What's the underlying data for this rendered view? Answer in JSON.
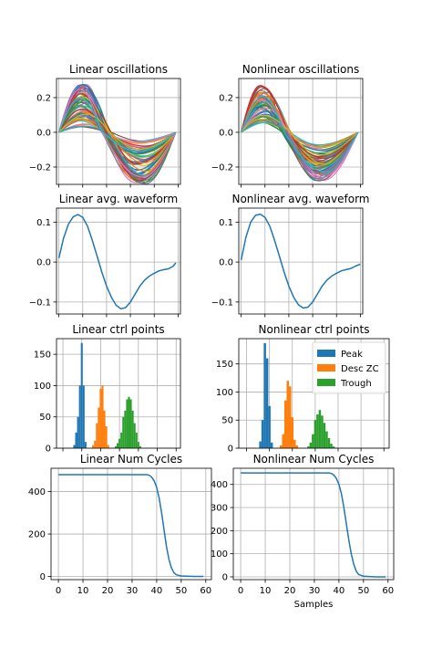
{
  "colors": {
    "line": "#1f77b4",
    "peak": "#1f77b4",
    "desc_zc": "#ff7f0e",
    "trough": "#2ca02c",
    "grid": "#b0b0b0",
    "spines": "#000000",
    "cycle": [
      "#1f77b4",
      "#ff7f0e",
      "#2ca02c",
      "#d62728",
      "#9467bd",
      "#8c564b",
      "#e377c2",
      "#7f7f7f",
      "#bcbd22",
      "#17becf"
    ]
  },
  "chart_data": [
    {
      "id": "lin_osc",
      "type": "line",
      "title": "Linear oscillations",
      "xlabel": "",
      "ylabel": "",
      "xlim": [
        -1,
        51
      ],
      "ylim": [
        -0.3,
        0.31
      ],
      "xticks": [
        0,
        10,
        20,
        30,
        40,
        50
      ],
      "yticks": [
        -0.2,
        0.0,
        0.2
      ],
      "ytick_labels": [
        "−0.2",
        "0.0",
        "0.2"
      ],
      "show_xtick_labels": false,
      "grid": true,
      "waveform": {
        "n_traces": 60,
        "length": 50,
        "peak_idx": 10,
        "zc_idx": 20,
        "trough_idx": 34,
        "end_idx": 49,
        "peak_amp": [
          0.03,
          0.28
        ],
        "trough_amp": [
          -0.3,
          -0.05
        ],
        "end_val": 0.0
      }
    },
    {
      "id": "nonlin_osc",
      "type": "line",
      "title": "Nonlinear oscillations",
      "xlabel": "",
      "ylabel": "",
      "xlim": [
        -1,
        51
      ],
      "ylim": [
        -0.3,
        0.31
      ],
      "xticks": [
        0,
        10,
        20,
        30,
        40,
        50
      ],
      "yticks": [
        -0.2,
        0.0,
        0.2
      ],
      "ytick_labels": [
        "−0.2",
        "0.0",
        "0.2"
      ],
      "show_xtick_labels": false,
      "grid": true,
      "waveform": {
        "n_traces": 60,
        "length": 50,
        "peak_idx": 9,
        "zc_idx": 19,
        "trough_idx": 33,
        "end_idx": 49,
        "peak_amp": [
          0.05,
          0.27
        ],
        "trough_amp": [
          -0.28,
          -0.07
        ],
        "end_val": 0.0
      }
    },
    {
      "id": "lin_avg",
      "type": "line",
      "title": "Linear avg. waveform",
      "xlabel": "",
      "ylabel": "",
      "xlim": [
        -1,
        51
      ],
      "ylim": [
        -0.13,
        0.135
      ],
      "xticks": [
        0,
        10,
        20,
        30,
        40,
        50
      ],
      "yticks": [
        -0.1,
        0.0,
        0.1
      ],
      "ytick_labels": [
        "−0.1",
        "0.0",
        "0.1"
      ],
      "show_xtick_labels": false,
      "grid": true,
      "series": [
        {
          "x": [
            0,
            2,
            4,
            6,
            8,
            10,
            12,
            14,
            16,
            18,
            20,
            22,
            24,
            26,
            28,
            30,
            32,
            34,
            36,
            38,
            40,
            42,
            44,
            46,
            48,
            49
          ],
          "y": [
            0.01,
            0.06,
            0.095,
            0.113,
            0.119,
            0.112,
            0.09,
            0.055,
            0.015,
            -0.025,
            -0.06,
            -0.088,
            -0.108,
            -0.117,
            -0.114,
            -0.1,
            -0.08,
            -0.06,
            -0.045,
            -0.035,
            -0.028,
            -0.022,
            -0.019,
            -0.017,
            -0.01,
            -0.002
          ]
        }
      ]
    },
    {
      "id": "nonlin_avg",
      "type": "line",
      "title": "Nonlinear avg. waveform",
      "xlabel": "",
      "ylabel": "",
      "xlim": [
        -1,
        51
      ],
      "ylim": [
        -0.13,
        0.135
      ],
      "xticks": [
        0,
        10,
        20,
        30,
        40,
        50
      ],
      "yticks": [
        -0.1,
        0.0,
        0.1
      ],
      "ytick_labels": [
        "−0.1",
        "0.0",
        "0.1"
      ],
      "show_xtick_labels": false,
      "grid": true,
      "series": [
        {
          "x": [
            0,
            2,
            4,
            6,
            8,
            10,
            12,
            14,
            16,
            18,
            20,
            22,
            24,
            26,
            28,
            30,
            32,
            34,
            36,
            38,
            40,
            42,
            44,
            46,
            48,
            50
          ],
          "y": [
            0.005,
            0.062,
            0.1,
            0.117,
            0.12,
            0.112,
            0.09,
            0.055,
            0.015,
            -0.025,
            -0.06,
            -0.088,
            -0.107,
            -0.115,
            -0.113,
            -0.1,
            -0.08,
            -0.06,
            -0.045,
            -0.035,
            -0.028,
            -0.022,
            -0.019,
            -0.016,
            -0.01,
            -0.005
          ]
        }
      ]
    },
    {
      "id": "lin_ctrl",
      "type": "bar",
      "title": "Linear ctrl points",
      "xlabel": "",
      "ylabel": "",
      "xlim": [
        -3.4,
        62.3
      ],
      "ylim": [
        0,
        175
      ],
      "xticks": [
        0,
        10,
        20,
        30,
        40,
        50,
        60
      ],
      "yticks": [
        0,
        50,
        100,
        150
      ],
      "ytick_labels": [
        "0",
        "50",
        "100",
        "150"
      ],
      "show_xtick_labels": false,
      "grid": true,
      "bar_width": 1,
      "series": [
        {
          "name": "Peak",
          "x": [
            6,
            7,
            8,
            9,
            10,
            11,
            12
          ],
          "values": [
            5,
            25,
            50,
            100,
            168,
            100,
            10
          ]
        },
        {
          "name": "Desc ZC",
          "x": [
            16,
            17,
            18,
            19,
            20,
            21,
            22,
            23,
            24
          ],
          "values": [
            5,
            12,
            40,
            65,
            95,
            100,
            60,
            35,
            5
          ]
        },
        {
          "name": "Trough",
          "x": [
            28,
            29,
            30,
            31,
            32,
            33,
            34,
            35,
            36,
            37,
            38,
            39,
            40,
            41
          ],
          "values": [
            3,
            8,
            15,
            25,
            50,
            60,
            78,
            82,
            78,
            60,
            40,
            25,
            10,
            3
          ]
        }
      ]
    },
    {
      "id": "nonlin_ctrl",
      "type": "bar",
      "title": "Nonlinear ctrl points",
      "xlabel": "",
      "ylabel": "",
      "xlim": [
        -3.4,
        62.3
      ],
      "ylim": [
        0,
        195
      ],
      "xticks": [
        0,
        10,
        20,
        30,
        40,
        50,
        60
      ],
      "yticks": [
        0,
        50,
        100,
        150
      ],
      "ytick_labels": [
        "0",
        "50",
        "100",
        "150"
      ],
      "show_xtick_labels": false,
      "grid": true,
      "bar_width": 1,
      "legend": {
        "position": "top-right",
        "entries": [
          "Peak",
          "Desc ZC",
          "Trough"
        ]
      },
      "series": [
        {
          "name": "Peak",
          "x": [
            6,
            7,
            8,
            9,
            10,
            11
          ],
          "values": [
            12,
            50,
            187,
            160,
            75,
            10
          ]
        },
        {
          "name": "Desc ZC",
          "x": [
            15,
            16,
            17,
            18,
            19,
            20,
            21,
            22
          ],
          "values": [
            5,
            25,
            85,
            120,
            110,
            55,
            15,
            5
          ]
        },
        {
          "name": "Trough",
          "x": [
            27,
            28,
            29,
            30,
            31,
            32,
            33,
            34,
            35,
            36,
            37,
            38,
            39
          ],
          "values": [
            3,
            10,
            25,
            50,
            60,
            68,
            58,
            45,
            30,
            18,
            8,
            3,
            1
          ]
        }
      ]
    },
    {
      "id": "lin_cycles",
      "type": "line",
      "title": "Linear Num Cycles",
      "xlabel": "",
      "ylabel": "",
      "xlim": [
        -3,
        62.3
      ],
      "ylim": [
        -15,
        510
      ],
      "xticks": [
        0,
        10,
        20,
        30,
        40,
        50,
        60
      ],
      "yticks": [
        0,
        200,
        400
      ],
      "ytick_labels": [
        "0",
        "200",
        "400"
      ],
      "show_xtick_labels": true,
      "grid": true,
      "series": [
        {
          "x": [
            0,
            10,
            20,
            30,
            36,
            37,
            38,
            39,
            40,
            41,
            42,
            43,
            44,
            45,
            46,
            47,
            48,
            50,
            55,
            59
          ],
          "y": [
            480,
            480,
            480,
            480,
            480,
            477,
            468,
            450,
            420,
            370,
            300,
            220,
            140,
            80,
            40,
            18,
            8,
            2,
            0,
            0
          ]
        }
      ]
    },
    {
      "id": "nonlin_cycles",
      "type": "line",
      "title": "Nonlinear Num Cycles",
      "xlabel": "Samples",
      "ylabel": "",
      "xlim": [
        -3,
        62.3
      ],
      "ylim": [
        -12,
        470
      ],
      "xticks": [
        0,
        10,
        20,
        30,
        40,
        50,
        60
      ],
      "yticks": [
        0,
        100,
        200,
        300,
        400
      ],
      "ytick_labels": [
        "0",
        "100",
        "200",
        "300",
        "400"
      ],
      "show_xtick_labels": true,
      "grid": true,
      "series": [
        {
          "x": [
            0,
            10,
            20,
            30,
            36,
            37,
            38,
            39,
            40,
            41,
            42,
            43,
            44,
            45,
            46,
            47,
            48,
            50,
            55,
            59
          ],
          "y": [
            450,
            450,
            450,
            450,
            450,
            447,
            440,
            425,
            400,
            360,
            300,
            230,
            160,
            100,
            55,
            25,
            10,
            3,
            0,
            0
          ]
        }
      ]
    }
  ]
}
